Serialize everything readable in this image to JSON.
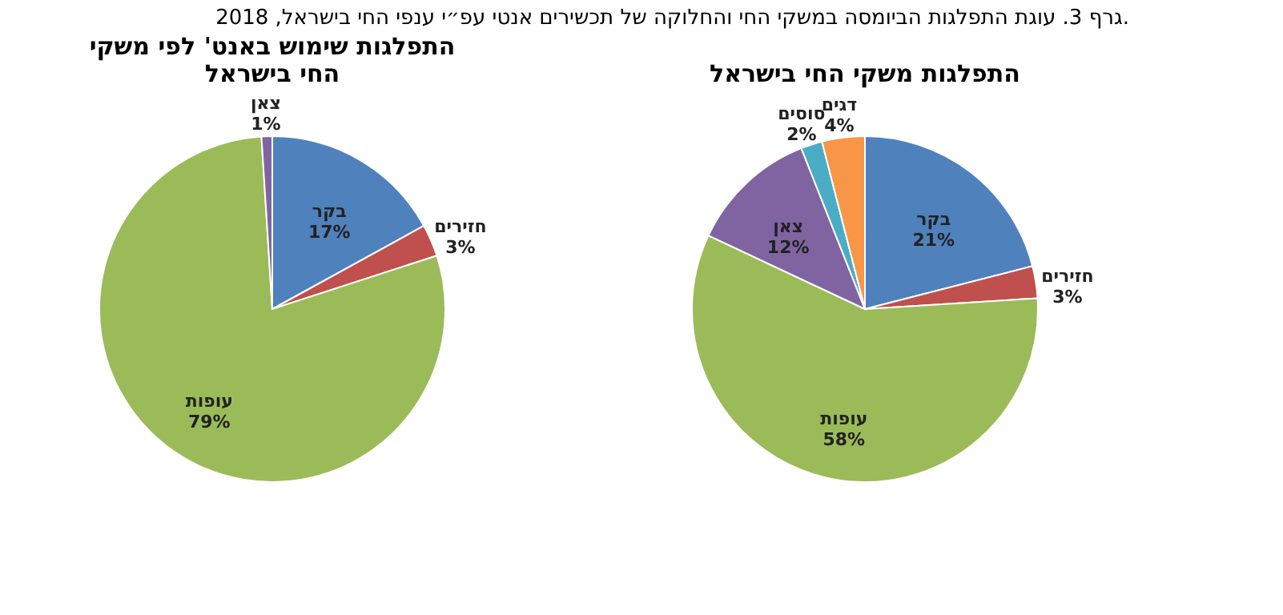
{
  "chart_data": [
    {
      "type": "pie",
      "title": "התפלגות משקי החי בישראל",
      "annotations": [
        "גרף 3. עוגת התפלגות הביומסה במשקי החי והחלוקה של תכשירים אנטי עפ״י ענפי החי בישראל, 2018."
      ],
      "categories": [
        "בקר",
        "חזירים",
        "עופות",
        "צאן",
        "סוסים",
        "דגים"
      ],
      "values": [
        21,
        3,
        58,
        12,
        2,
        4
      ],
      "value_labels": [
        "21%",
        "3%",
        "58%",
        "12%",
        "2%",
        "4%"
      ],
      "colors": [
        "#4f81bd",
        "#c0504d",
        "#9bbb59",
        "#8064a2",
        "#4bacc6",
        "#f79646"
      ]
    },
    {
      "type": "pie",
      "title": "התפלגות שימוש באנט' לפי משקי החי בישראל",
      "categories": [
        "בקר",
        "חזירים",
        "עופות",
        "צאן"
      ],
      "values": [
        17,
        3,
        79,
        1
      ],
      "value_labels": [
        "17%",
        "3%",
        "79%",
        "1%"
      ],
      "colors": [
        "#4f81bd",
        "#c0504d",
        "#9bbb59",
        "#8064a2"
      ]
    }
  ]
}
